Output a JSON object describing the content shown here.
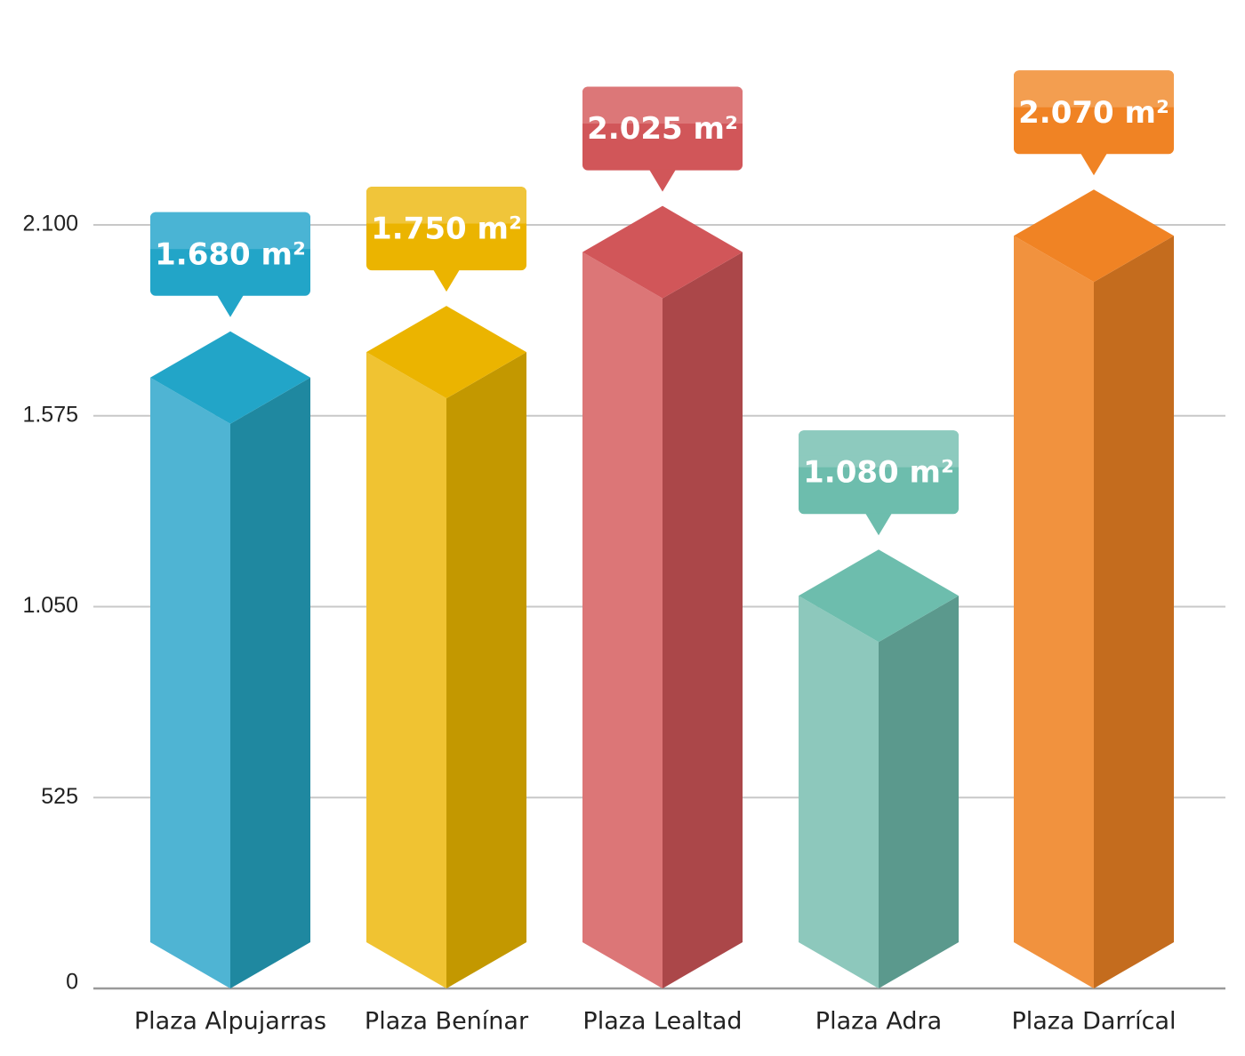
{
  "chart_data": {
    "type": "bar",
    "style": "3d-isometric",
    "categories": [
      "Plaza Alpujarras",
      "Plaza Benínar",
      "Plaza Lealtad",
      "Plaza Adra",
      "Plaza Darrícal"
    ],
    "values": [
      1680,
      1750,
      2025,
      1080,
      2070
    ],
    "data_labels": [
      "1.680 m²",
      "1.750 m²",
      "2.025 m²",
      "1.080 m²",
      "2.070 m²"
    ],
    "yticks": [
      0,
      525,
      1050,
      1575,
      2100
    ],
    "ytick_labels": [
      "0",
      "525",
      "1.050",
      "1.575",
      "2.100"
    ],
    "ylim": [
      0,
      2100
    ],
    "grid": true,
    "title": "",
    "xlabel": "",
    "ylabel": "",
    "colors": [
      {
        "left": "#4fb4d3",
        "right": "#1f88a0",
        "top": "#22a5c8",
        "callout": "#22a5c8",
        "callout_light": "#4ab4d4"
      },
      {
        "left": "#f0c332",
        "right": "#c39800",
        "top": "#ebb400",
        "callout": "#ebb400",
        "callout_light": "#f0c53a"
      },
      {
        "left": "#dc7677",
        "right": "#ab4749",
        "top": "#d15659",
        "callout": "#d15659",
        "callout_light": "#dc7778"
      },
      {
        "left": "#8dc8bc",
        "right": "#5b998d",
        "top": "#6dbdad",
        "callout": "#6dbdad",
        "callout_light": "#8dcabe"
      },
      {
        "left": "#f1923e",
        "right": "#c46c1e",
        "top": "#f08324",
        "callout": "#f08324",
        "callout_light": "#f39e50"
      }
    ]
  }
}
